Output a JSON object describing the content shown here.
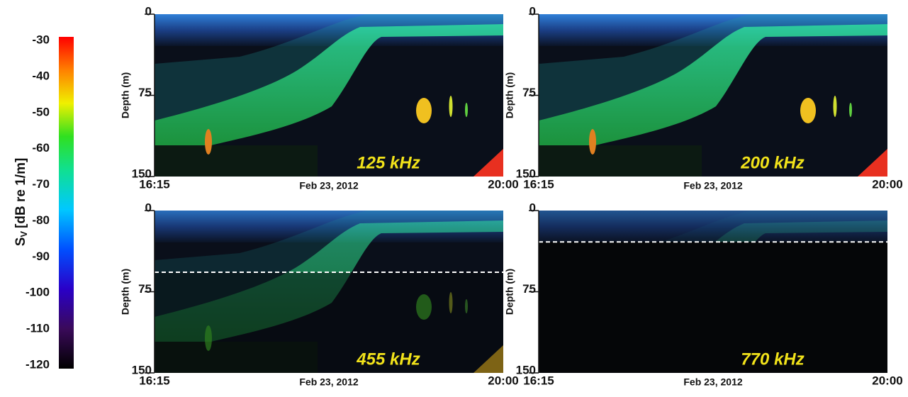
{
  "colorbar": {
    "label": {
      "symbol": "S",
      "subscript": "V",
      "unit": "[dB re 1/m]"
    },
    "range": [
      -120,
      -30
    ],
    "ticks": [
      -30,
      -40,
      -50,
      -60,
      -70,
      -80,
      -90,
      -100,
      -110,
      -120
    ]
  },
  "panels": [
    {
      "frequency": "125 kHz",
      "y_label": "Depth (m)",
      "ylim": [
        0,
        150
      ],
      "yticks": [
        0,
        75,
        150
      ],
      "x_start": "16:15",
      "x_end": "20:00",
      "date": "Feb 23, 2012"
    },
    {
      "frequency": "200 kHz",
      "y_label": "Depth (m)",
      "ylim": [
        0,
        150
      ],
      "yticks": [
        0,
        75,
        150
      ],
      "x_start": "16:15",
      "x_end": "20:00",
      "date": "Feb 23, 2012"
    },
    {
      "frequency": "455 kHz",
      "y_label": "Depth (m)",
      "ylim": [
        0,
        150
      ],
      "yticks": [
        0,
        75,
        150
      ],
      "x_start": "16:15",
      "x_end": "20:00",
      "date": "Feb 23, 2012",
      "cutoff_depth": 57
    },
    {
      "frequency": "770 kHz",
      "y_label": "Depth (m)",
      "ylim": [
        0,
        150
      ],
      "yticks": [
        0,
        75,
        150
      ],
      "x_start": "16:15",
      "x_end": "20:00",
      "date": "Feb 23, 2012",
      "cutoff_depth": 29
    }
  ]
}
